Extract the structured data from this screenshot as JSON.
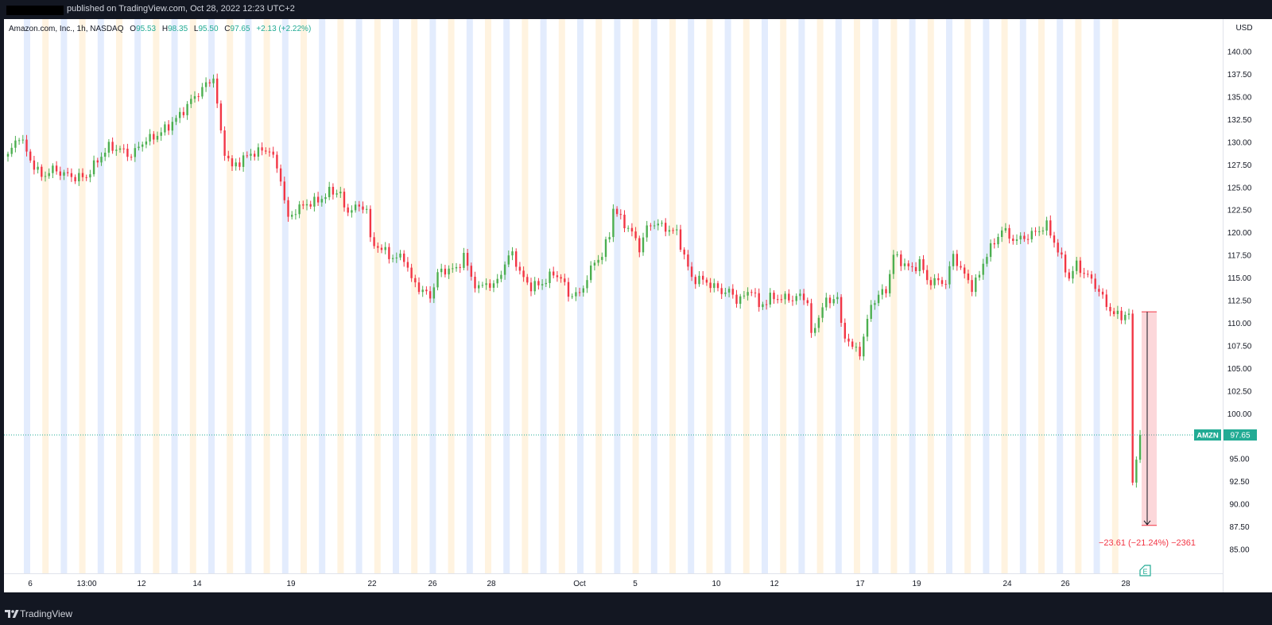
{
  "header": {
    "published": "published on TradingView.com, Oct 28, 2022 12:23 UTC+2"
  },
  "footer": {
    "brand": "TradingView",
    "logo_icon": "tradingview-logo-icon"
  },
  "legend": {
    "symbol": "Amazon.com, Inc., 1h, NASDAQ",
    "open_label": "O",
    "open": "95.53",
    "high_label": "H",
    "high": "98.35",
    "low_label": "L",
    "low": "95.50",
    "close_label": "C",
    "close": "97.65",
    "change": "+2.13 (+2.22%)"
  },
  "price_badge": {
    "symbol": "AMZN",
    "price": "97.65"
  },
  "measure_label": "−23.61 (−21.24%) −2361",
  "earnings_marker": "E",
  "colors": {
    "up": "#26a69a",
    "up_candle": "#4caf50",
    "down": "#f23645",
    "label_green": "#22ab94",
    "premarket": "#fff3e0",
    "afterhours": "#e3ecfd"
  },
  "chart_data": {
    "type": "candlestick",
    "title": "Amazon.com, Inc., 1h, NASDAQ",
    "currency": "USD",
    "ylim": [
      82.8,
      143.2
    ],
    "y_ticks": [
      "140.00",
      "137.50",
      "135.00",
      "132.50",
      "130.00",
      "127.50",
      "125.00",
      "122.50",
      "120.00",
      "117.50",
      "115.00",
      "112.50",
      "110.00",
      "107.50",
      "105.00",
      "102.50",
      "100.00",
      "97.50",
      "95.00",
      "92.50",
      "90.00",
      "87.50",
      "85.00"
    ],
    "x_ticks": [
      "6",
      "13:00",
      "12",
      "14",
      "19",
      "22",
      "26",
      "28",
      "Oct",
      "5",
      "10",
      "12",
      "17",
      "19",
      "24",
      "26",
      "28"
    ],
    "last_price": 97.65,
    "price_path": [
      [
        0,
        128.5
      ],
      [
        3,
        130.8
      ],
      [
        6,
        128.0
      ],
      [
        9,
        126.2
      ],
      [
        12,
        127.0
      ],
      [
        15,
        126.5
      ],
      [
        18,
        126.1
      ],
      [
        21,
        126.2
      ],
      [
        24,
        128.0
      ],
      [
        27,
        129.5
      ],
      [
        30,
        129.2
      ],
      [
        33,
        128.5
      ],
      [
        36,
        130.0
      ],
      [
        40,
        130.8
      ],
      [
        43,
        131.8
      ],
      [
        46,
        133.0
      ],
      [
        49,
        134.6
      ],
      [
        52,
        135.9
      ],
      [
        55,
        137.2
      ],
      [
        57,
        131.0
      ],
      [
        58,
        129.0
      ],
      [
        60,
        127.2
      ],
      [
        63,
        128.2
      ],
      [
        66,
        128.9
      ],
      [
        70,
        129.2
      ],
      [
        71,
        128.2
      ],
      [
        73,
        126.0
      ],
      [
        74,
        123.5
      ],
      [
        75,
        121.5
      ],
      [
        77,
        122.5
      ],
      [
        80,
        123.2
      ],
      [
        83,
        123.5
      ],
      [
        86,
        124.5
      ],
      [
        89,
        124.5
      ],
      [
        90,
        122.4
      ],
      [
        93,
        122.8
      ],
      [
        96,
        122.8
      ],
      [
        97,
        119.0
      ],
      [
        100,
        118.2
      ],
      [
        103,
        117.2
      ],
      [
        106,
        117.3
      ],
      [
        108,
        114.8
      ],
      [
        110,
        113.9
      ],
      [
        113,
        112.9
      ],
      [
        115,
        115.5
      ],
      [
        118,
        116.0
      ],
      [
        120,
        115.9
      ],
      [
        122,
        117.5
      ],
      [
        124,
        115.0
      ],
      [
        126,
        113.8
      ],
      [
        128,
        114.5
      ],
      [
        130,
        114.0
      ],
      [
        133,
        116.5
      ],
      [
        135,
        117.9
      ],
      [
        137,
        115.5
      ],
      [
        140,
        114.0
      ],
      [
        143,
        114.4
      ],
      [
        146,
        115.5
      ],
      [
        148,
        115.0
      ],
      [
        150,
        113.2
      ],
      [
        153,
        113.2
      ],
      [
        155,
        115.0
      ],
      [
        157,
        116.8
      ],
      [
        159,
        117.5
      ],
      [
        161,
        119.9
      ],
      [
        162,
        122.7
      ],
      [
        164,
        121.5
      ],
      [
        167,
        120.0
      ],
      [
        169,
        118.3
      ],
      [
        171,
        120.5
      ],
      [
        173,
        121.1
      ],
      [
        176,
        120.5
      ],
      [
        179,
        120.0
      ],
      [
        181,
        117.4
      ],
      [
        183,
        114.9
      ],
      [
        185,
        114.9
      ],
      [
        188,
        114.3
      ],
      [
        191,
        113.5
      ],
      [
        193,
        113.5
      ],
      [
        195,
        112.6
      ],
      [
        197,
        112.9
      ],
      [
        199,
        113.9
      ],
      [
        201,
        111.8
      ],
      [
        204,
        112.8
      ],
      [
        207,
        112.8
      ],
      [
        210,
        112.7
      ],
      [
        212,
        113.0
      ],
      [
        214,
        112.5
      ],
      [
        215,
        108.5
      ],
      [
        216,
        109.5
      ],
      [
        218,
        112.0
      ],
      [
        220,
        112.5
      ],
      [
        222,
        113.0
      ],
      [
        223,
        109.5
      ],
      [
        225,
        108.0
      ],
      [
        226,
        107.3
      ],
      [
        228,
        106.8
      ],
      [
        230,
        110.2
      ],
      [
        231,
        112.0
      ],
      [
        233,
        113.1
      ],
      [
        235,
        113.6
      ],
      [
        237,
        117.5
      ],
      [
        240,
        116.5
      ],
      [
        242,
        115.9
      ],
      [
        244,
        116.8
      ],
      [
        246,
        114.7
      ],
      [
        249,
        114.6
      ],
      [
        251,
        114.5
      ],
      [
        253,
        117.5
      ],
      [
        256,
        115.3
      ],
      [
        258,
        114.0
      ],
      [
        260,
        115.3
      ],
      [
        262,
        117.8
      ],
      [
        264,
        118.8
      ],
      [
        266,
        120.5
      ],
      [
        268,
        119.5
      ],
      [
        270,
        119.2
      ],
      [
        273,
        119.6
      ],
      [
        276,
        120.3
      ],
      [
        278,
        120.8
      ],
      [
        280,
        119.0
      ],
      [
        282,
        117.0
      ],
      [
        284,
        115.0
      ],
      [
        286,
        116.5
      ],
      [
        288,
        115.5
      ],
      [
        290,
        114.8
      ],
      [
        292,
        113.5
      ],
      [
        294,
        112.0
      ],
      [
        296,
        111.0
      ],
      [
        298,
        110.8
      ],
      [
        300,
        111.0
      ],
      [
        301,
        92.0
      ],
      [
        302,
        95.5
      ],
      [
        303,
        97.7
      ]
    ],
    "measure": {
      "from_price": 111.26,
      "to_price": 87.65,
      "change": -23.61,
      "change_pct": -21.24,
      "bars": -2361
    }
  }
}
